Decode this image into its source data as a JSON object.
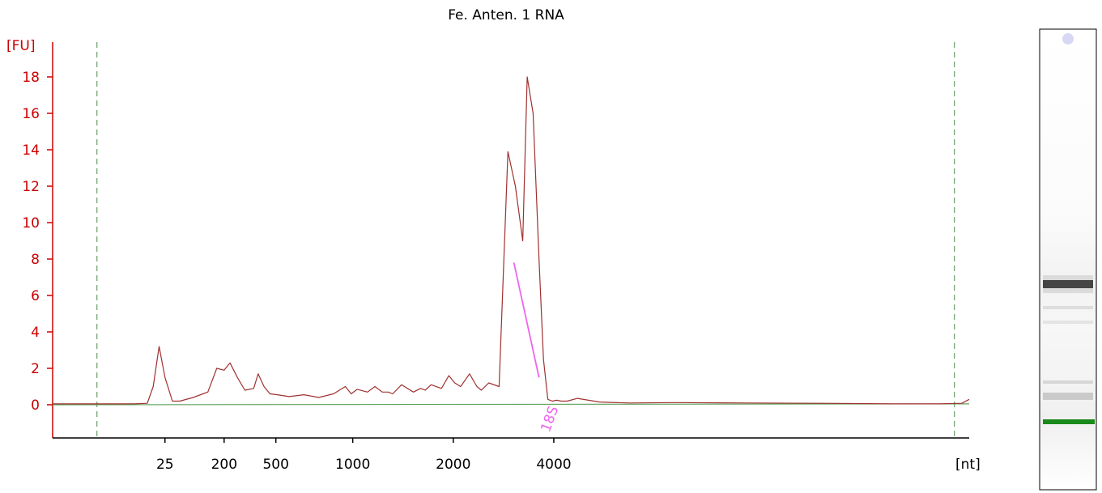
{
  "colors": {
    "trace": "#a03030",
    "baseline": "#5aa05a",
    "marker_line": "#4a8a4a",
    "y_axis": "#cc0000",
    "x_axis": "#000000",
    "peak_label": "#ee66ee",
    "gel_band": "#222222",
    "gel_marker_band": "#1a8a1a"
  },
  "chart_data": {
    "type": "line",
    "title": "Fe. Anten. 1 RNA",
    "ylabel": "[FU]",
    "xlabel": "[nt]",
    "ylim": [
      -1.8,
      20
    ],
    "yticks": [
      0,
      2,
      4,
      6,
      8,
      10,
      12,
      14,
      16,
      18
    ],
    "xtick_labels": [
      "25",
      "200",
      "500",
      "1000",
      "2000",
      "4000"
    ],
    "xtick_positions_s": [
      25.6,
      29.6,
      33.1,
      38.3,
      45.1,
      51.9
    ],
    "xlim_s": [
      18.0,
      80.0
    ],
    "marker_lines_s": [
      21.0,
      79.0
    ],
    "peak_label": {
      "text": "18S",
      "x_s": 51.6,
      "y": -0.3
    },
    "trace": {
      "x_s": [
        18.0,
        20.0,
        21.5,
        23.5,
        24.4,
        24.8,
        25.2,
        25.6,
        26.1,
        26.6,
        27.5,
        28.5,
        29.1,
        29.6,
        30.0,
        30.5,
        31.0,
        31.6,
        31.9,
        32.3,
        32.7,
        33.2,
        34.0,
        35.0,
        36.0,
        37.0,
        37.8,
        38.2,
        38.6,
        39.3,
        39.8,
        40.3,
        40.7,
        41.0,
        41.6,
        42.4,
        42.9,
        43.2,
        43.6,
        44.3,
        44.8,
        45.2,
        45.6,
        46.2,
        46.7,
        47.0,
        47.5,
        48.2,
        48.8,
        49.3,
        49.8,
        50.1,
        50.5,
        50.9,
        51.2,
        51.5,
        51.8,
        52.1,
        52.4,
        52.8,
        53.5,
        55.0,
        57.0,
        60.0,
        65.0,
        70.0,
        75.0,
        78.0,
        79.5,
        80.0
      ],
      "y": [
        0.05,
        0.05,
        0.05,
        0.05,
        0.08,
        1.0,
        3.2,
        1.5,
        0.2,
        0.2,
        0.4,
        0.7,
        2.0,
        1.9,
        2.3,
        1.5,
        0.8,
        0.9,
        1.7,
        1.0,
        0.6,
        0.55,
        0.45,
        0.55,
        0.4,
        0.6,
        1.0,
        0.6,
        0.85,
        0.7,
        1.0,
        0.7,
        0.7,
        0.6,
        1.1,
        0.7,
        0.9,
        0.8,
        1.1,
        0.9,
        1.6,
        1.2,
        1.0,
        1.7,
        1.0,
        0.8,
        1.2,
        1.0,
        13.9,
        12.0,
        9.0,
        18.0,
        16.0,
        8.0,
        2.5,
        0.3,
        0.2,
        0.25,
        0.2,
        0.2,
        0.35,
        0.15,
        0.1,
        0.12,
        0.1,
        0.08,
        0.05,
        0.05,
        0.08,
        0.3
      ]
    },
    "baseline": {
      "x_s": [
        18.0,
        80.0
      ],
      "y": [
        0.0,
        0.05
      ]
    }
  }
}
